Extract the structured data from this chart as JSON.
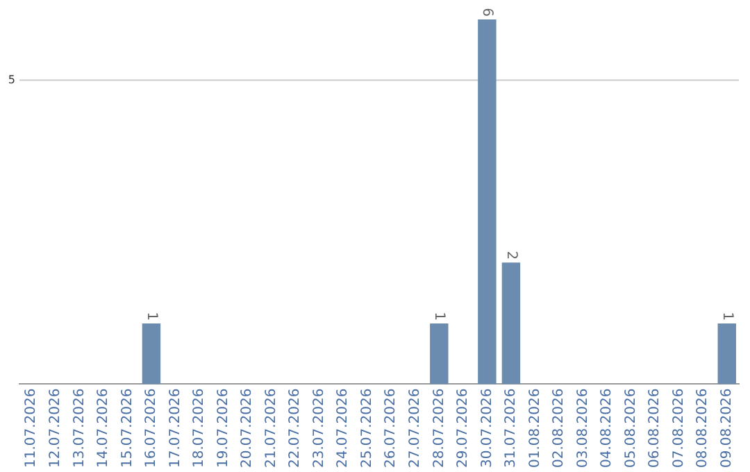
{
  "chart_data": {
    "type": "bar",
    "categories": [
      "11.07.2026",
      "12.07.2026",
      "13.07.2026",
      "14.07.2026",
      "15.07.2026",
      "16.07.2026",
      "17.07.2026",
      "18.07.2026",
      "19.07.2026",
      "20.07.2026",
      "21.07.2026",
      "22.07.2026",
      "23.07.2026",
      "24.07.2026",
      "25.07.2026",
      "26.07.2026",
      "27.07.2026",
      "28.07.2026",
      "29.07.2026",
      "30.07.2026",
      "31.07.2026",
      "01.08.2026",
      "02.08.2026",
      "03.08.2026",
      "04.08.2026",
      "05.08.2026",
      "06.08.2026",
      "07.08.2026",
      "08.08.2026",
      "09.08.2026"
    ],
    "values": [
      0,
      0,
      0,
      0,
      0,
      1,
      0,
      0,
      0,
      0,
      0,
      0,
      0,
      0,
      0,
      0,
      0,
      1,
      0,
      6,
      2,
      0,
      0,
      0,
      0,
      0,
      0,
      0,
      0,
      1
    ],
    "value_labels": [
      null,
      null,
      null,
      null,
      null,
      "1",
      null,
      null,
      null,
      null,
      null,
      null,
      null,
      null,
      null,
      null,
      null,
      "1",
      null,
      "6",
      "2",
      null,
      null,
      null,
      null,
      null,
      null,
      null,
      null,
      "1"
    ],
    "color": "#6b8cae",
    "ref_lines": [
      {
        "axis": "y",
        "value": 5,
        "label": "5",
        "color": "#cccccc"
      }
    ],
    "legend": false
  }
}
